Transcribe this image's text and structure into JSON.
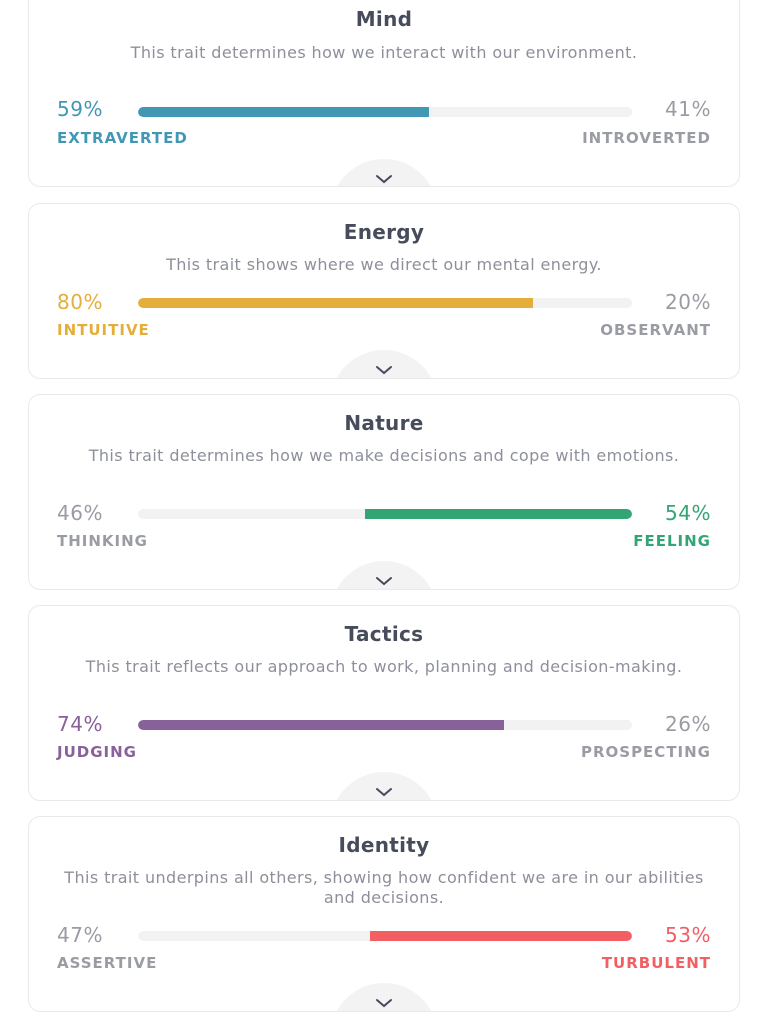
{
  "traits": [
    {
      "title": "Mind",
      "description": "This trait determines how we interact with our environment.",
      "left": {
        "percent": "59%",
        "label": "EXTRAVERTED"
      },
      "right": {
        "percent": "41%",
        "label": "INTROVERTED"
      },
      "dominant": "left",
      "fill_percent": 59,
      "color": "#4298b4",
      "expand_icon": "chevron-down-icon"
    },
    {
      "title": "Energy",
      "description": "This trait shows where we direct our mental energy.",
      "left": {
        "percent": "80%",
        "label": "INTUITIVE"
      },
      "right": {
        "percent": "20%",
        "label": "OBSERVANT"
      },
      "dominant": "left",
      "fill_percent": 80,
      "color": "#e4ae3a",
      "expand_icon": "chevron-down-icon"
    },
    {
      "title": "Nature",
      "description": "This trait determines how we make decisions and cope with emotions.",
      "left": {
        "percent": "46%",
        "label": "THINKING"
      },
      "right": {
        "percent": "54%",
        "label": "FEELING"
      },
      "dominant": "right",
      "fill_percent": 54,
      "color": "#33a474",
      "expand_icon": "chevron-down-icon"
    },
    {
      "title": "Tactics",
      "description": "This trait reflects our approach to work, planning and decision-making.",
      "left": {
        "percent": "74%",
        "label": "JUDGING"
      },
      "right": {
        "percent": "26%",
        "label": "PROSPECTING"
      },
      "dominant": "left",
      "fill_percent": 74,
      "color": "#88619a",
      "expand_icon": "chevron-down-icon"
    },
    {
      "title": "Identity",
      "description": "This trait underpins all others, showing how confident we are in our abilities and decisions.",
      "left": {
        "percent": "47%",
        "label": "ASSERTIVE"
      },
      "right": {
        "percent": "53%",
        "label": "TURBULENT"
      },
      "dominant": "right",
      "fill_percent": 53,
      "color": "#f25e62",
      "expand_icon": "chevron-down-icon"
    }
  ],
  "colors": {
    "neutral_text": "#9a9ca4",
    "title_text": "#474c5b",
    "track": "#f2f2f3"
  }
}
